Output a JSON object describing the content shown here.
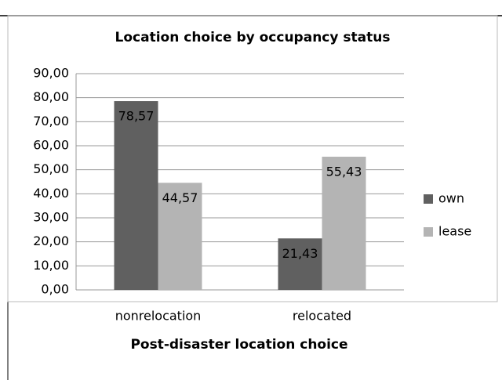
{
  "chart_data": {
    "type": "bar",
    "title": "Location choice by occupancy status",
    "x_label": "Post-disaster location choice",
    "categories": [
      "nonrelocation",
      "relocated"
    ],
    "series": [
      {
        "name": "own",
        "color": "#606060",
        "values": [
          78.57,
          21.43
        ],
        "value_labels": [
          "78,57",
          "21,43"
        ]
      },
      {
        "name": "lease",
        "color": "#b4b4b4",
        "values": [
          44.57,
          55.43
        ],
        "value_labels": [
          "44,57",
          "55,43"
        ]
      }
    ],
    "ylim": [
      0,
      90
    ],
    "yticks": [
      {
        "value": 0,
        "label": "0,00"
      },
      {
        "value": 10,
        "label": "10,00"
      },
      {
        "value": 20,
        "label": "20,00"
      },
      {
        "value": 30,
        "label": "30,00"
      },
      {
        "value": 40,
        "label": "40,00"
      },
      {
        "value": 50,
        "label": "50,00"
      },
      {
        "value": 60,
        "label": "60,00"
      },
      {
        "value": 70,
        "label": "70,00"
      },
      {
        "value": 80,
        "label": "80,00"
      },
      {
        "value": 90,
        "label": "90,00"
      }
    ],
    "grid": true,
    "legend": "right"
  }
}
